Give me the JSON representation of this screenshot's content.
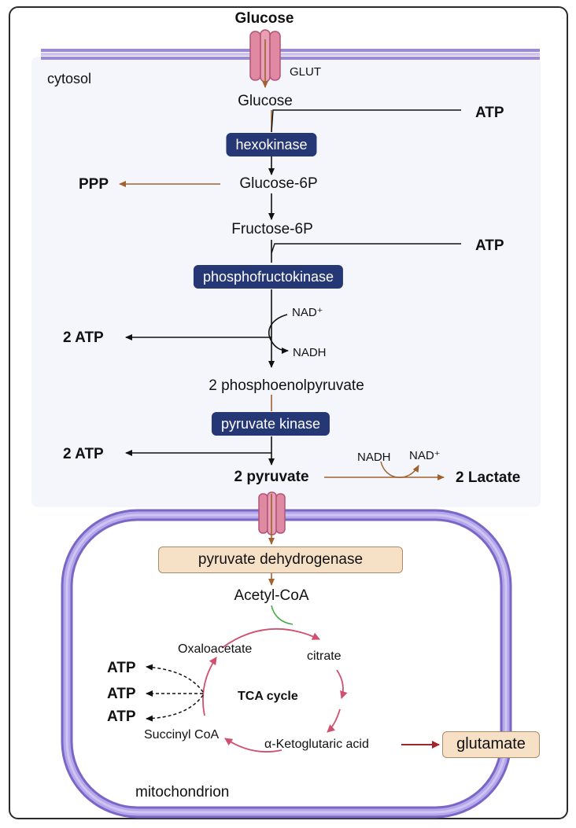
{
  "outside": {
    "glucose": "Glucose"
  },
  "compartments": {
    "cytosol": "cytosol",
    "mitochondrion": "mitochondrion"
  },
  "transporter": {
    "label": "GLUT"
  },
  "metabolites": {
    "glucose": "Glucose",
    "glucose_6p": "Glucose-6P",
    "fructose_6p": "Fructose-6P",
    "pep": "2 phosphoenolpyruvate",
    "pyruvate": "2 pyruvate",
    "lactate": "2 Lactate",
    "acetyl_coa": "Acetyl-CoA"
  },
  "enzymes": {
    "hexokinase": "hexokinase",
    "pfk": "phosphofructokinase",
    "pyruvate_kinase": "pyruvate kinase",
    "pdh": "pyruvate dehydrogenase"
  },
  "side_products": {
    "atp_in_1": "ATP",
    "atp_in_2": "ATP",
    "ppp": "PPP",
    "atp_out_1": "2 ATP",
    "atp_out_2": "2 ATP"
  },
  "cofactors": {
    "nad_plus": "NAD⁺",
    "nadh": "NADH",
    "lactate_nadh": "NADH",
    "lactate_nad_plus": "NAD⁺"
  },
  "tca": {
    "title": "TCA cycle",
    "oxaloacetate": "Oxaloacetate",
    "citrate": "citrate",
    "succinyl_coa": "Succinyl CoA",
    "akg": "α-Ketoglutaric acid",
    "glutamate": "glutamate",
    "atp_outputs": [
      "ATP",
      "ATP",
      "ATP"
    ]
  },
  "colors": {
    "membrane": "#9c8ad6",
    "enzyme_dark": "#253775",
    "enzyme_tan": "#f6e1c7",
    "transporter": "#e089a3",
    "arrow_brown": "#a0622e",
    "tca_arrow": "#d0506f",
    "glutamate_arrow": "#a3262c"
  }
}
